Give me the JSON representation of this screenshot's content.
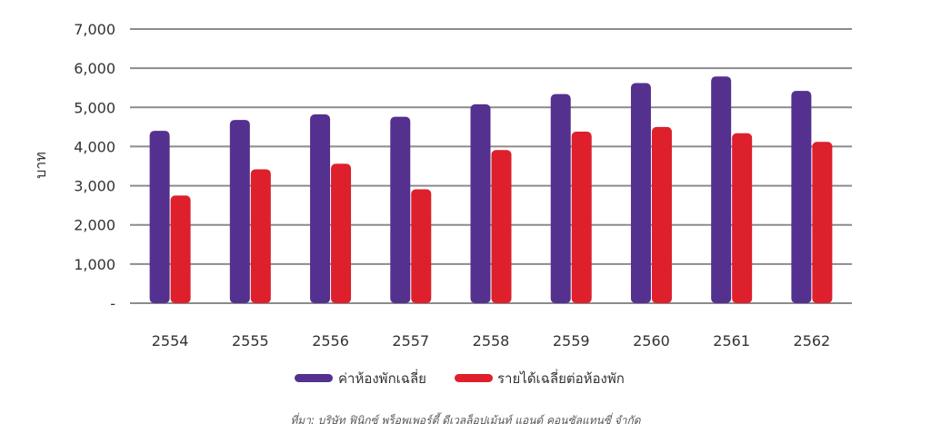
{
  "chart_data": {
    "type": "bar",
    "ylabel": "บาท",
    "ylim": [
      0,
      7000
    ],
    "yticks": [
      0,
      1000,
      2000,
      3000,
      4000,
      5000,
      6000,
      7000
    ],
    "ytick_labels": [
      "-",
      "1,000",
      "2,000",
      "3,000",
      "4,000",
      "5,000",
      "6,000",
      "7,000"
    ],
    "grid": true,
    "legend_position": "bottom",
    "categories": [
      "2554",
      "2555",
      "2556",
      "2557",
      "2558",
      "2559",
      "2560",
      "2561",
      "2562"
    ],
    "series": [
      {
        "name": "ค่าห้องพักเฉลี่ย",
        "color": "#54318e",
        "values": [
          4400,
          4680,
          4820,
          4760,
          5080,
          5340,
          5620,
          5790,
          5420
        ]
      },
      {
        "name": "รายได้เฉลี่ยต่อห้องพัก",
        "color": "#dd202c",
        "values": [
          2750,
          3420,
          3560,
          2910,
          3910,
          4380,
          4500,
          4340,
          4120
        ]
      }
    ]
  },
  "source_note": "ที่มา: บริษัท ฟินิกซ์ พร็อพเพอร์ตี้ ดีเวลล็อปเม้นท์ แอนด์ คอนซัลแทนซี่ จำกัด"
}
